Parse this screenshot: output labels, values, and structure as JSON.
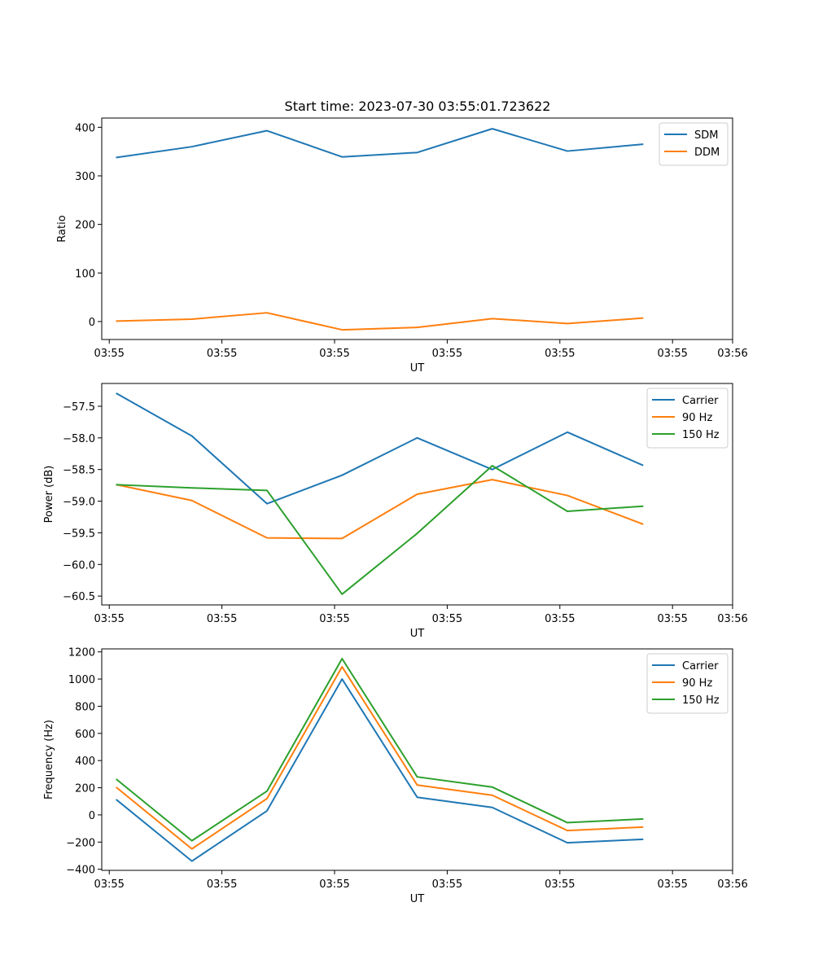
{
  "figure_title": "Start time: 2023-07-30 03:55:01.723622",
  "chart_data": [
    {
      "type": "line",
      "title": "Start time: 2023-07-30 03:55:01.723622",
      "xlabel": "UT",
      "ylabel": "Ratio",
      "x": [
        1,
        2,
        3,
        4,
        5,
        6,
        7,
        8
      ],
      "xlim": [
        0.8,
        9.2
      ],
      "x_ticks": [
        {
          "value": 0.9,
          "label": "03:55"
        },
        {
          "value": 2.4,
          "label": "03:55"
        },
        {
          "value": 3.9,
          "label": "03:55"
        },
        {
          "value": 5.4,
          "label": "03:55"
        },
        {
          "value": 6.9,
          "label": "03:55"
        },
        {
          "value": 8.4,
          "label": "03:55"
        },
        {
          "value": 9.2,
          "label": "03:56"
        }
      ],
      "ylim": [
        -37,
        419
      ],
      "y_ticks": [
        {
          "value": 0,
          "label": "0"
        },
        {
          "value": 100,
          "label": "100"
        },
        {
          "value": 200,
          "label": "200"
        },
        {
          "value": 300,
          "label": "300"
        },
        {
          "value": 400,
          "label": "400"
        }
      ],
      "legend_position": "top-right",
      "series": [
        {
          "name": "SDM",
          "color": "#1f77b4",
          "values": [
            338,
            360,
            393,
            339,
            348,
            397,
            351,
            365
          ]
        },
        {
          "name": "DDM",
          "color": "#ff7f0e",
          "values": [
            1,
            5,
            18,
            -17,
            -12,
            6,
            -4,
            7
          ]
        }
      ]
    },
    {
      "type": "line",
      "title": "",
      "xlabel": "UT",
      "ylabel": "Power (dB)",
      "x": [
        1,
        2,
        3,
        4,
        5,
        6,
        7,
        8
      ],
      "xlim": [
        0.8,
        9.2
      ],
      "x_ticks": [
        {
          "value": 0.9,
          "label": "03:55"
        },
        {
          "value": 2.4,
          "label": "03:55"
        },
        {
          "value": 3.9,
          "label": "03:55"
        },
        {
          "value": 5.4,
          "label": "03:55"
        },
        {
          "value": 6.9,
          "label": "03:55"
        },
        {
          "value": 8.4,
          "label": "03:55"
        },
        {
          "value": 9.2,
          "label": "03:56"
        }
      ],
      "ylim": [
        -60.64,
        -57.14
      ],
      "y_ticks": [
        {
          "value": -60.5,
          "label": "−60.5"
        },
        {
          "value": -60.0,
          "label": "−60.0"
        },
        {
          "value": -59.5,
          "label": "−59.5"
        },
        {
          "value": -59.0,
          "label": "−59.0"
        },
        {
          "value": -58.5,
          "label": "−58.5"
        },
        {
          "value": -58.0,
          "label": "−58.0"
        },
        {
          "value": -57.5,
          "label": "−57.5"
        }
      ],
      "legend_position": "top-right",
      "series": [
        {
          "name": "Carrier",
          "color": "#1f77b4",
          "values": [
            -57.3,
            -57.97,
            -59.04,
            -58.59,
            -58.0,
            -58.5,
            -57.91,
            -58.43
          ]
        },
        {
          "name": "90 Hz",
          "color": "#ff7f0e",
          "values": [
            -58.74,
            -58.99,
            -59.58,
            -59.59,
            -58.89,
            -58.66,
            -58.91,
            -59.36
          ]
        },
        {
          "name": "150 Hz",
          "color": "#2ca02c",
          "values": [
            -58.74,
            -58.79,
            -58.83,
            -60.47,
            -59.51,
            -58.44,
            -59.16,
            -59.08
          ]
        }
      ]
    },
    {
      "type": "line",
      "title": "",
      "xlabel": "UT",
      "ylabel": "Frequency (Hz)",
      "x": [
        1,
        2,
        3,
        4,
        5,
        6,
        7,
        8
      ],
      "xlim": [
        0.8,
        9.2
      ],
      "x_ticks": [
        {
          "value": 0.9,
          "label": "03:55"
        },
        {
          "value": 2.4,
          "label": "03:55"
        },
        {
          "value": 3.9,
          "label": "03:55"
        },
        {
          "value": 5.4,
          "label": "03:55"
        },
        {
          "value": 6.9,
          "label": "03:55"
        },
        {
          "value": 8.4,
          "label": "03:55"
        },
        {
          "value": 9.2,
          "label": "03:56"
        }
      ],
      "ylim": [
        -408,
        1222
      ],
      "y_ticks": [
        {
          "value": -400,
          "label": "−400"
        },
        {
          "value": -200,
          "label": "−200"
        },
        {
          "value": 0,
          "label": "0"
        },
        {
          "value": 200,
          "label": "200"
        },
        {
          "value": 400,
          "label": "400"
        },
        {
          "value": 600,
          "label": "600"
        },
        {
          "value": 800,
          "label": "800"
        },
        {
          "value": 1000,
          "label": "1000"
        },
        {
          "value": 1200,
          "label": "1200"
        }
      ],
      "legend_position": "top-right",
      "series": [
        {
          "name": "Carrier",
          "color": "#1f77b4",
          "values": [
            110,
            -340,
            30,
            1000,
            130,
            55,
            -205,
            -180
          ]
        },
        {
          "name": "90 Hz",
          "color": "#ff7f0e",
          "values": [
            200,
            -250,
            120,
            1090,
            220,
            145,
            -115,
            -90
          ]
        },
        {
          "name": "150 Hz",
          "color": "#2ca02c",
          "values": [
            260,
            -190,
            175,
            1150,
            280,
            205,
            -57,
            -30
          ]
        }
      ]
    }
  ]
}
